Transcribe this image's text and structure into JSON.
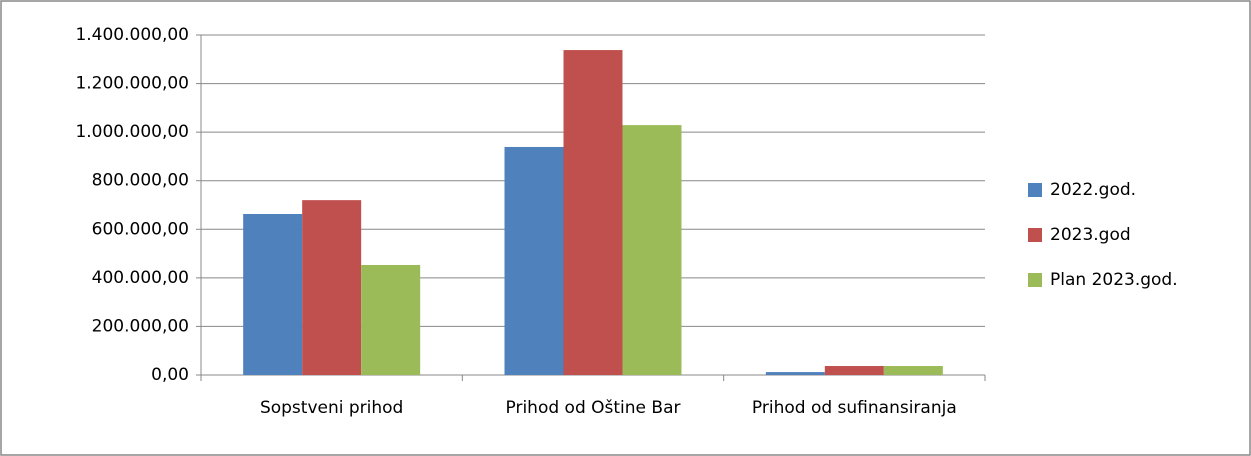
{
  "chart_data": {
    "type": "bar",
    "categories": [
      "Sopstveni prihod",
      "Prihod od Oštine Bar",
      "Prihod od sufinansiranja"
    ],
    "series": [
      {
        "name": "2022.god.",
        "color": "#4f81bd",
        "values": [
          663000,
          939000,
          12000
        ]
      },
      {
        "name": "2023.god",
        "color": "#c0504d",
        "values": [
          720000,
          1338000,
          37000
        ]
      },
      {
        "name": "Plan 2023.god.",
        "color": "#9bbb59",
        "values": [
          453000,
          1029000,
          37000
        ]
      }
    ],
    "ylim": [
      0,
      1400000
    ],
    "yticks": [
      {
        "value": 0,
        "label": "0,00"
      },
      {
        "value": 200000,
        "label": "200.000,00"
      },
      {
        "value": 400000,
        "label": "400.000,00"
      },
      {
        "value": 600000,
        "label": "600.000,00"
      },
      {
        "value": 800000,
        "label": "800.000,00"
      },
      {
        "value": 1000000,
        "label": "1.000.000,00"
      },
      {
        "value": 1200000,
        "label": "1.200.000,00"
      },
      {
        "value": 1400000,
        "label": "1.400.000,00"
      }
    ],
    "grid": true,
    "legend": "right"
  }
}
